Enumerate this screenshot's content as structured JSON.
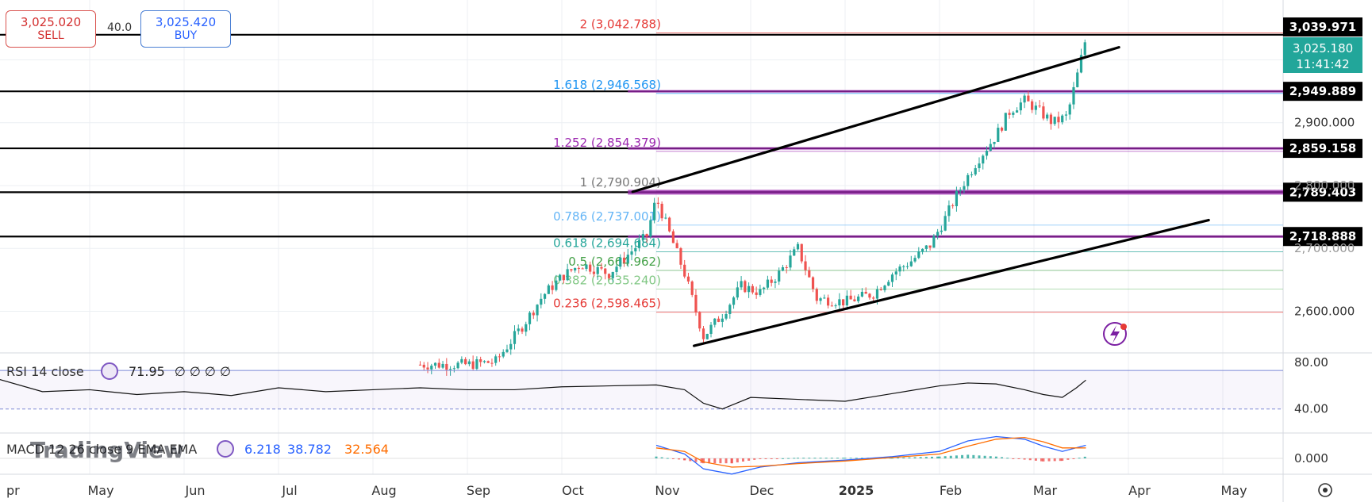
{
  "trade": {
    "sell_price": "3,025.020",
    "sell_label": "SELL",
    "buy_price": "3,025.420",
    "buy_label": "BUY",
    "spread": "40.0"
  },
  "x_labels": [
    "pr",
    "May",
    "Jun",
    "Jul",
    "Aug",
    "Sep",
    "Oct",
    "Nov",
    "Dec",
    "2025",
    "Feb",
    "Mar",
    "Apr",
    "May"
  ],
  "price_axis": {
    "ticks": [
      "2,900.000",
      "2,600.000"
    ],
    "partial_ticks": [
      "2,800.000",
      "2,700.000"
    ]
  },
  "fib_levels": [
    {
      "label": "2 (3,042.788)",
      "value": 3042.788,
      "color": "#e53935"
    },
    {
      "label": "1.618 (2,946.568)",
      "value": 2946.568,
      "color": "#2196f3"
    },
    {
      "label": "1.252 (2,854.379)",
      "value": 2854.379,
      "color": "#9c27b0"
    },
    {
      "label": "1 (2,790.904)",
      "value": 2790.904,
      "color": "#777777"
    },
    {
      "label": "0.786 (2,737.001)",
      "value": 2737.001,
      "color": "#64b5f6"
    },
    {
      "label": "0.618 (2,694.684)",
      "value": 2694.684,
      "color": "#26a69a"
    },
    {
      "label": "0.5 (2,664.962)",
      "value": 2664.962,
      "color": "#43a047"
    },
    {
      "label": "0.382 (2,635.240)",
      "value": 2635.24,
      "color": "#81c784"
    },
    {
      "label": "0.236 (2,598.465)",
      "value": 2598.465,
      "color": "#e53935"
    }
  ],
  "hlines": [
    {
      "label": "3,039.971",
      "value": 3039.971
    },
    {
      "label": "2,949.889",
      "value": 2949.889
    },
    {
      "label": "2,859.158",
      "value": 2859.158
    },
    {
      "label": "2,789.403",
      "value": 2789.403
    },
    {
      "label": "2,718.888",
      "value": 2718.888
    }
  ],
  "current": {
    "price": "3,025.180",
    "countdown": "11:41:42",
    "value": 3025.18
  },
  "rsi": {
    "title": "RSI 14 close",
    "value": "71.95",
    "extras": "∅ ∅ ∅ ∅",
    "levels": [
      "80.00",
      "40.00"
    ]
  },
  "macd": {
    "title": "MACD 12 26 close 9 EMA EMA",
    "macd_value": "6.218",
    "signal_value": "38.782",
    "hist_value": "32.564",
    "zero": "0.000"
  },
  "watermark": "TradingView",
  "chart_data": {
    "type": "line",
    "title": "",
    "y_range": [
      2540,
      3070
    ],
    "x_months": [
      "Apr",
      "May",
      "Jun",
      "Jul",
      "Aug",
      "Sep",
      "Oct",
      "Nov",
      "Dec",
      "2025",
      "Feb",
      "Mar",
      "Apr",
      "May"
    ],
    "x_month_values": [
      0,
      1,
      2,
      3,
      4,
      5,
      6,
      7,
      8,
      9,
      10,
      11,
      12,
      13
    ],
    "x_start_months": 4.5,
    "x_end_months": 11.55,
    "series": [
      {
        "x": [
          4.5,
          5.0,
          5.3,
          5.6,
          5.8,
          6.0,
          6.2,
          6.5,
          6.9,
          7.0,
          7.15,
          7.3,
          7.5,
          7.7,
          7.9,
          8.1,
          8.3,
          8.5,
          8.7,
          9.0,
          9.3,
          9.5,
          9.7,
          9.9,
          10.05,
          10.2,
          10.4,
          10.6,
          10.75,
          10.9,
          11.0,
          11.2,
          11.35,
          11.45,
          11.55
        ],
        "y": [
          2515,
          2515,
          2520,
          2580,
          2625,
          2655,
          2675,
          2660,
          2720,
          2780,
          2720,
          2660,
          2560,
          2595,
          2640,
          2630,
          2660,
          2700,
          2620,
          2615,
          2628,
          2660,
          2680,
          2705,
          2745,
          2790,
          2840,
          2880,
          2920,
          2935,
          2925,
          2900,
          2910,
          2970,
          3035
        ]
      }
    ],
    "rsi_series": {
      "x": [
        0.0,
        0.5,
        1.0,
        1.5,
        2.0,
        2.5,
        3.0,
        3.5,
        4.0,
        4.5,
        5.0,
        5.5,
        6.0,
        6.5,
        7.0,
        7.3,
        7.5,
        7.7,
        8.0,
        8.5,
        9.0,
        9.5,
        10.0,
        10.3,
        10.6,
        10.9,
        11.1,
        11.3,
        11.45,
        11.55
      ],
      "y": [
        72,
        58,
        60,
        55,
        58,
        54,
        62,
        58,
        60,
        62,
        60,
        60,
        63,
        64,
        65,
        60,
        46,
        40,
        52,
        50,
        48,
        56,
        64,
        67,
        66,
        60,
        55,
        52,
        62,
        70
      ]
    },
    "rsi_levels": [
      80,
      40
    ],
    "macd_series": {
      "x": [
        7.0,
        7.3,
        7.5,
        7.8,
        8.1,
        8.5,
        9.0,
        9.5,
        10.0,
        10.3,
        10.6,
        10.9,
        11.1,
        11.3,
        11.55
      ],
      "macd": [
        15,
        5,
        -12,
        -18,
        -10,
        -5,
        -2,
        2,
        8,
        20,
        25,
        22,
        14,
        8,
        15
      ],
      "signal": [
        12,
        8,
        -4,
        -10,
        -9,
        -6,
        -3,
        1,
        5,
        14,
        22,
        24,
        19,
        12,
        12
      ]
    },
    "trend_lines": [
      {
        "from": [
          6.75,
          2790
        ],
        "to": [
          11.9,
          3020
        ]
      },
      {
        "from": [
          7.4,
          2545
        ],
        "to": [
          12.85,
          2745
        ]
      }
    ]
  }
}
